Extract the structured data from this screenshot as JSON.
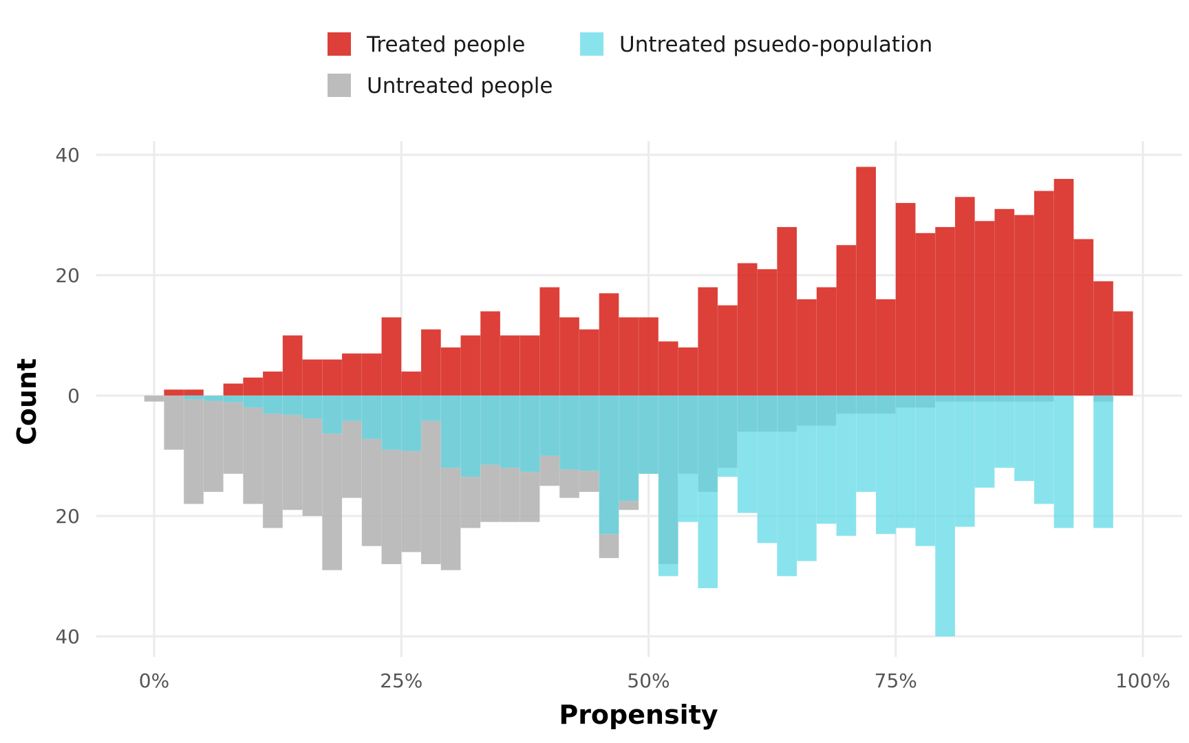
{
  "chart_data": {
    "type": "bar",
    "subtype": "mirrored-histogram",
    "title": "",
    "xlabel": "Propensity",
    "ylabel": "Count",
    "xlim": [
      0,
      1
    ],
    "ylim": [
      -40,
      40
    ],
    "x_ticks": [
      0,
      0.25,
      0.5,
      0.75,
      1
    ],
    "x_tick_labels": [
      "0%",
      "25%",
      "50%",
      "75%",
      "100%"
    ],
    "y_ticks": [
      40,
      20,
      0,
      -20,
      -40
    ],
    "y_tick_labels": [
      "40",
      "20",
      "0",
      "20",
      "40"
    ],
    "grid": true,
    "legend_position": "top",
    "bin_width": 0.02,
    "bin_centers": [
      0.0,
      0.02,
      0.04,
      0.06,
      0.08,
      0.1,
      0.12,
      0.14,
      0.16,
      0.18,
      0.2,
      0.22,
      0.24,
      0.26,
      0.28,
      0.3,
      0.32,
      0.34,
      0.36,
      0.38,
      0.4,
      0.42,
      0.44,
      0.46,
      0.48,
      0.5,
      0.52,
      0.54,
      0.56,
      0.58,
      0.6,
      0.62,
      0.64,
      0.66,
      0.68,
      0.7,
      0.72,
      0.74,
      0.76,
      0.78,
      0.8,
      0.82,
      0.84,
      0.86,
      0.88,
      0.9,
      0.92,
      0.94,
      0.96,
      0.98
    ],
    "series": [
      {
        "name": "Treated people",
        "color": "#d7261e",
        "direction": "up",
        "values": [
          0,
          1,
          1,
          0,
          2,
          3,
          4,
          10,
          6,
          6,
          7,
          7,
          13,
          4,
          11,
          8,
          10,
          14,
          10,
          10,
          18,
          13,
          11,
          17,
          13,
          13,
          9,
          8,
          18,
          15,
          22,
          21,
          28,
          16,
          18,
          25,
          38,
          16,
          32,
          27,
          28,
          33,
          29,
          31,
          30,
          34,
          36,
          26,
          19,
          14
        ]
      },
      {
        "name": "Untreated people",
        "color": "#b3b3b3",
        "direction": "down",
        "values": [
          1,
          9,
          18,
          16,
          13,
          18,
          22,
          19,
          20,
          29,
          17,
          25,
          28,
          26,
          28,
          29,
          22,
          21,
          21,
          21,
          15,
          17,
          16,
          27,
          19,
          13,
          28,
          13,
          16,
          12,
          6,
          6,
          6,
          5,
          5,
          3,
          3,
          3,
          2,
          2,
          1,
          1,
          1,
          1,
          1,
          1,
          0,
          0,
          1,
          0
        ]
      },
      {
        "name": "Untreated psuedo-population",
        "color": "#5bd8e6",
        "direction": "down",
        "values": [
          0,
          0,
          0.6,
          0.9,
          1.1,
          2.0,
          3.0,
          3.2,
          3.8,
          6.3,
          4.2,
          7.2,
          9.0,
          9.2,
          4.2,
          12,
          13.5,
          11.5,
          12,
          12.7,
          10,
          12.3,
          12.5,
          23,
          17.5,
          13,
          30,
          21,
          32,
          13.5,
          19.5,
          24.5,
          30,
          27.5,
          21.3,
          23.3,
          16,
          23,
          22,
          25,
          40,
          21.8,
          15.3,
          12,
          14.2,
          18,
          22,
          0,
          22,
          0
        ]
      }
    ]
  }
}
